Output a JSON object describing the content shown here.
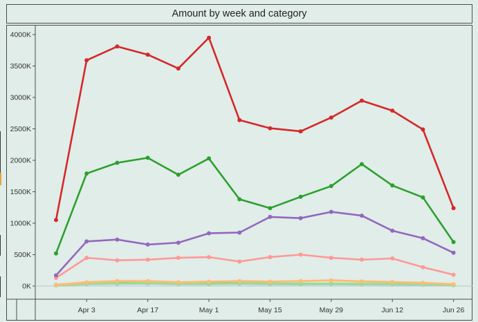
{
  "chart_data": {
    "type": "line",
    "title": "Amount by week and category",
    "xlabel": "",
    "ylabel": "",
    "x": [
      "Mar 27",
      "Apr 3",
      "Apr 10",
      "Apr 17",
      "Apr 24",
      "May 1",
      "May 8",
      "May 15",
      "May 22",
      "May 29",
      "Jun 5",
      "Jun 12",
      "Jun 19",
      "Jun 26"
    ],
    "x_tick_labels": [
      "Apr 3",
      "Apr 17",
      "May 1",
      "May 15",
      "May 29",
      "Jun 12",
      "Jun 26"
    ],
    "y_tick_labels": [
      "0K",
      "500K",
      "1000K",
      "1500K",
      "2000K",
      "2500K",
      "3000K",
      "3500K",
      "4000K"
    ],
    "ylim": [
      -100,
      4100
    ],
    "grid": false,
    "zero_line": true,
    "series": [
      {
        "color": "#d62728",
        "values": [
          1050,
          3590,
          3810,
          3680,
          3460,
          3950,
          2640,
          2510,
          2460,
          2680,
          2950,
          2790,
          2490,
          1240
        ]
      },
      {
        "color": "#2ca02c",
        "values": [
          520,
          1790,
          1960,
          2040,
          1770,
          2030,
          1380,
          1240,
          1420,
          1590,
          1940,
          1600,
          1410,
          700
        ]
      },
      {
        "color": "#9467bd",
        "values": [
          170,
          710,
          740,
          660,
          690,
          840,
          850,
          1100,
          1080,
          1180,
          1120,
          880,
          760,
          530
        ]
      },
      {
        "color": "#ff9896",
        "values": [
          130,
          450,
          410,
          420,
          450,
          460,
          390,
          460,
          500,
          450,
          420,
          440,
          300,
          180
        ]
      },
      {
        "color": "#ffbb78",
        "values": [
          20,
          60,
          80,
          80,
          60,
          70,
          80,
          70,
          80,
          90,
          75,
          65,
          50,
          30
        ]
      },
      {
        "color": "#98df8a",
        "values": [
          10,
          40,
          45,
          50,
          40,
          35,
          45,
          40,
          35,
          40,
          35,
          35,
          30,
          15
        ]
      },
      {
        "color": "#aec7e8",
        "values": [
          15,
          30,
          35,
          40,
          30,
          30,
          35,
          30,
          28,
          30,
          28,
          25,
          20,
          12
        ]
      },
      {
        "color": "#1f77b4",
        "values": [
          20,
          50,
          55,
          65,
          50,
          45,
          50,
          40,
          35,
          35,
          30,
          30,
          25,
          20
        ]
      }
    ]
  }
}
